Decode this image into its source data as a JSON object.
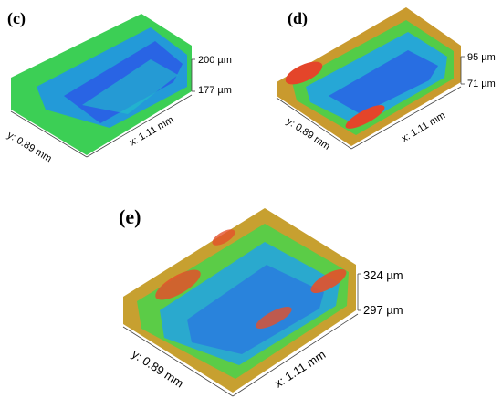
{
  "panels": [
    {
      "id": "c",
      "label": "(c)",
      "z_top": "200 µm",
      "z_bottom": "177 µm",
      "y_axis": "y: 0.89 mm",
      "x_axis": "x: 1.11 mm",
      "palette": [
        "#2a5be6",
        "#1e8ff0",
        "#22c7c7",
        "#33d36a",
        "#4ccf3b"
      ]
    },
    {
      "id": "d",
      "label": "(d)",
      "z_top": "95 µm",
      "z_bottom": "71 µm",
      "y_axis": "y: 0.89 mm",
      "x_axis": "x: 1.11 mm",
      "palette": [
        "#2a5be6",
        "#1ea0f0",
        "#29d6b8",
        "#46d14a",
        "#c99a2e",
        "#e4452a"
      ]
    },
    {
      "id": "e",
      "label": "(e)",
      "z_top": "324 µm",
      "z_bottom": "297 µm",
      "y_axis": "y: 0.89 mm",
      "x_axis": "x: 1.11 mm",
      "palette": [
        "#2a6ae6",
        "#1ea0f0",
        "#2ad3c0",
        "#4fd04a",
        "#c7a030",
        "#e4502a"
      ]
    }
  ]
}
